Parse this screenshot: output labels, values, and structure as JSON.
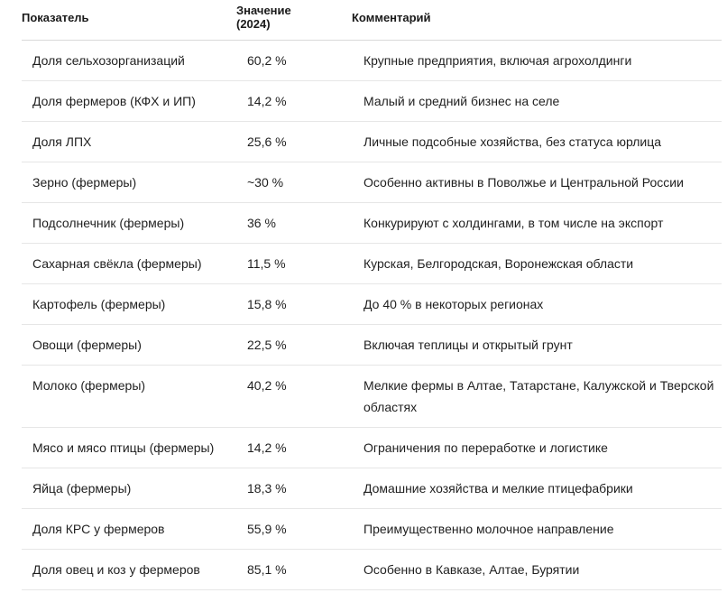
{
  "table": {
    "headers": {
      "indicator": "Показатель",
      "value": "Значение (2024)",
      "comment": "Комментарий"
    },
    "rows": [
      {
        "indicator": "Доля сельхозорганизаций",
        "value": "60,2 %",
        "comment": "Крупные предприятия, включая агрохолдинги"
      },
      {
        "indicator": "Доля фермеров (КФХ и ИП)",
        "value": "14,2 %",
        "comment": "Малый и средний бизнес на селе"
      },
      {
        "indicator": "Доля ЛПХ",
        "value": "25,6 %",
        "comment": "Личные подсобные хозяйства, без статуса юрлица"
      },
      {
        "indicator": "Зерно (фермеры)",
        "value": "~30 %",
        "comment": "Особенно активны в Поволжье и Центральной России"
      },
      {
        "indicator": "Подсолнечник (фермеры)",
        "value": "36 %",
        "comment": "Конкурируют с холдингами, в том числе на экспорт"
      },
      {
        "indicator": "Сахарная свёкла (фермеры)",
        "value": "11,5 %",
        "comment": "Курская, Белгородская, Воронежская области"
      },
      {
        "indicator": "Картофель (фермеры)",
        "value": "15,8 %",
        "comment": "До 40 % в некоторых регионах"
      },
      {
        "indicator": "Овощи (фермеры)",
        "value": "22,5 %",
        "comment": "Включая теплицы и открытый грунт"
      },
      {
        "indicator": "Молоко (фермеры)",
        "value": "40,2 %",
        "comment": "Мелкие фермы в Алтае, Татарстане, Калужской и Тверской областях"
      },
      {
        "indicator": "Мясо и мясо птицы (фермеры)",
        "value": "14,2 %",
        "comment": "Ограничения по переработке и логистике"
      },
      {
        "indicator": "Яйца (фермеры)",
        "value": "18,3 %",
        "comment": "Домашние хозяйства и мелкие птицефабрики"
      },
      {
        "indicator": "Доля КРС у фермеров",
        "value": "55,9 %",
        "comment": "Преимущественно молочное направление"
      },
      {
        "indicator": "Доля овец и коз у фермеров",
        "value": "85,1 %",
        "comment": "Особенно в Кавказе, Алтае, Бурятии"
      }
    ]
  }
}
